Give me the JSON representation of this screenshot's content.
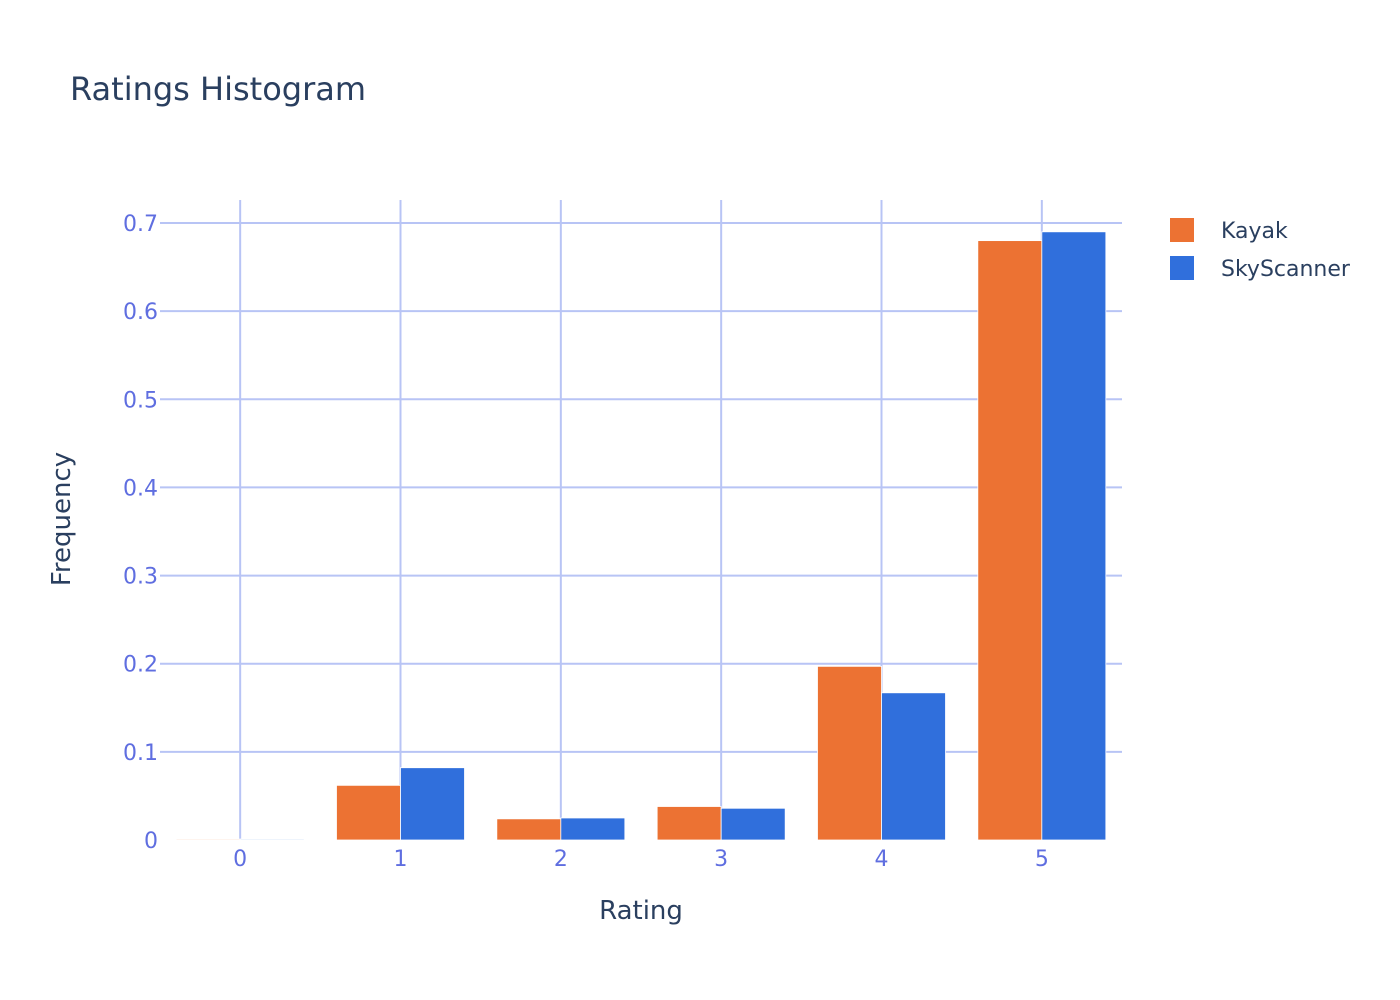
{
  "colors": {
    "kayak": "#ec7233",
    "skyscanner": "#306fdc",
    "grid": "#b8c4f5",
    "tick_text": "#5f6ee0",
    "title_text": "#2a3f5f"
  },
  "chart_data": {
    "type": "bar",
    "title": "Ratings Histogram",
    "xlabel": "Rating",
    "ylabel": "Frequency",
    "categories": [
      "0",
      "1",
      "2",
      "3",
      "4",
      "5"
    ],
    "series": [
      {
        "name": "Kayak",
        "values": [
          0.001,
          0.062,
          0.024,
          0.038,
          0.197,
          0.68
        ]
      },
      {
        "name": "SkyScanner",
        "values": [
          0.001,
          0.082,
          0.025,
          0.036,
          0.167,
          0.69
        ]
      }
    ],
    "ylim": [
      0,
      0.7
    ],
    "y_ticks": [
      "0",
      "0.1",
      "0.2",
      "0.3",
      "0.4",
      "0.5",
      "0.6",
      "0.7"
    ],
    "grid": true,
    "legend_position": "top-right"
  }
}
